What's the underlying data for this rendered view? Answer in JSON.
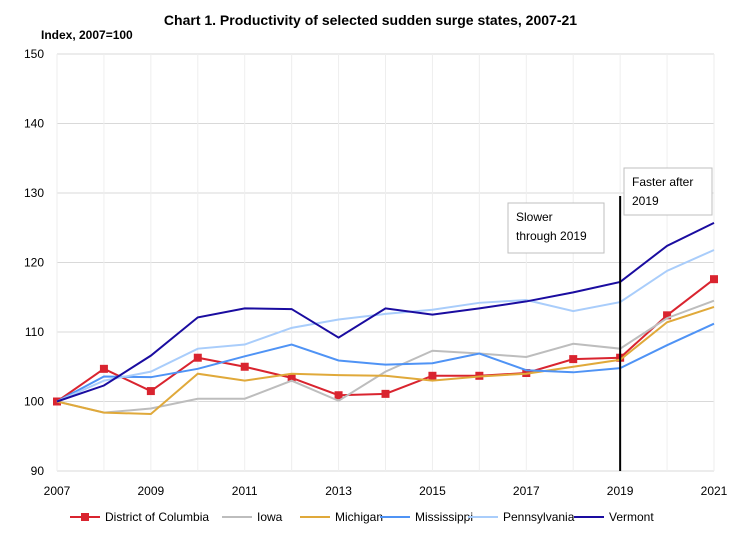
{
  "chart_data": {
    "type": "line",
    "title": "Chart 1. Productivity of selected sudden surge states, 2007-21",
    "ylabel": "Index, 2007=100",
    "xlabel": "",
    "xlim": [
      2007,
      2021
    ],
    "ylim": [
      90,
      150
    ],
    "xticks": [
      2007,
      2009,
      2011,
      2013,
      2015,
      2017,
      2019,
      2021
    ],
    "yticks": [
      90,
      100,
      110,
      120,
      130,
      140,
      150
    ],
    "grid": true,
    "legend": "bottom",
    "x": [
      2007,
      2008,
      2009,
      2010,
      2011,
      2012,
      2013,
      2014,
      2015,
      2016,
      2017,
      2018,
      2019,
      2020,
      2021
    ],
    "series": [
      {
        "name": "District of Columbia",
        "color": "#d9242f",
        "marker": "square",
        "values": [
          100,
          104.7,
          101.5,
          106.3,
          105,
          103.4,
          100.9,
          101.1,
          103.7,
          103.7,
          104.1,
          106.1,
          106.3,
          112.4,
          117.6
        ]
      },
      {
        "name": "Iowa",
        "color": "#bdbdbd",
        "values": [
          100,
          98.4,
          99,
          100.4,
          100.4,
          103,
          100.1,
          104.3,
          107.3,
          106.9,
          106.4,
          108.3,
          107.6,
          112,
          114.5
        ]
      },
      {
        "name": "Michigan",
        "color": "#e0a93a",
        "values": [
          100,
          98.4,
          98.2,
          104,
          103,
          104,
          103.8,
          103.7,
          103,
          103.6,
          104,
          105,
          106,
          111.4,
          113.6
        ]
      },
      {
        "name": "Mississippi",
        "color": "#4f93f5",
        "values": [
          100,
          103.6,
          103.5,
          104.7,
          106.5,
          108.2,
          105.9,
          105.3,
          105.5,
          106.9,
          104.5,
          104.2,
          104.8,
          108.1,
          111.2
        ]
      },
      {
        "name": "Pennsylvania",
        "color": "#a9cdfb",
        "values": [
          100,
          103,
          104.3,
          107.6,
          108.2,
          110.6,
          111.8,
          112.6,
          113.2,
          114.2,
          114.6,
          113,
          114.3,
          118.8,
          121.8
        ]
      },
      {
        "name": "Vermont",
        "color": "#1a0ca0",
        "values": [
          100,
          102.3,
          106.6,
          112.1,
          113.4,
          113.3,
          109.2,
          113.4,
          112.5,
          113.4,
          114.4,
          115.7,
          117.2,
          122.4,
          125.7
        ]
      }
    ],
    "annotations": [
      {
        "text_lines": [
          "Slower",
          "through 2019"
        ]
      },
      {
        "text_lines": [
          "Faster after",
          "2019"
        ]
      }
    ],
    "vertical_marker_x": 2019
  }
}
